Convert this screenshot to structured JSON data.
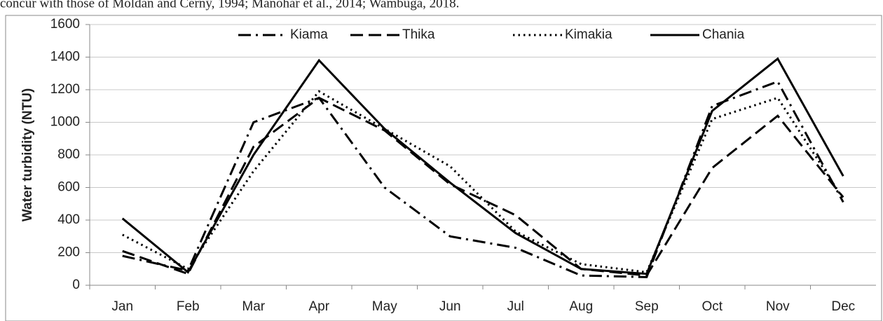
{
  "text_above": "concur with those of Moldan and Cerny, 1994; Manohar et al., 2014; Wambuga, 2018.",
  "chart_data": {
    "type": "line",
    "y_label": "Water turbidity (NTU)",
    "categories": [
      "Jan",
      "Feb",
      "Mar",
      "Apr",
      "May",
      "Jun",
      "Jul",
      "Aug",
      "Sep",
      "Oct",
      "Nov",
      "Dec"
    ],
    "series": [
      {
        "name": "Kiama",
        "color": "#000000",
        "dash": "dashdot",
        "values": [
          180,
          90,
          1000,
          1150,
          600,
          300,
          230,
          60,
          50,
          1100,
          1250,
          510
        ]
      },
      {
        "name": "Thika",
        "color": "#000000",
        "dash": "dash",
        "values": [
          210,
          70,
          850,
          1150,
          950,
          620,
          430,
          100,
          60,
          720,
          1040,
          540
        ]
      },
      {
        "name": "Kimakia",
        "color": "#000000",
        "dash": "dot",
        "values": [
          310,
          100,
          700,
          1190,
          960,
          730,
          330,
          130,
          80,
          1020,
          1150,
          530
        ]
      },
      {
        "name": "Chania",
        "color": "#000000",
        "dash": "solid",
        "values": [
          410,
          80,
          800,
          1380,
          960,
          630,
          320,
          100,
          70,
          1070,
          1390,
          670
        ]
      }
    ],
    "ylim": [
      0,
      1600
    ],
    "yticks": [
      0,
      200,
      400,
      600,
      800,
      1000,
      1200,
      1400,
      1600
    ],
    "grid": true,
    "legend": "top"
  }
}
